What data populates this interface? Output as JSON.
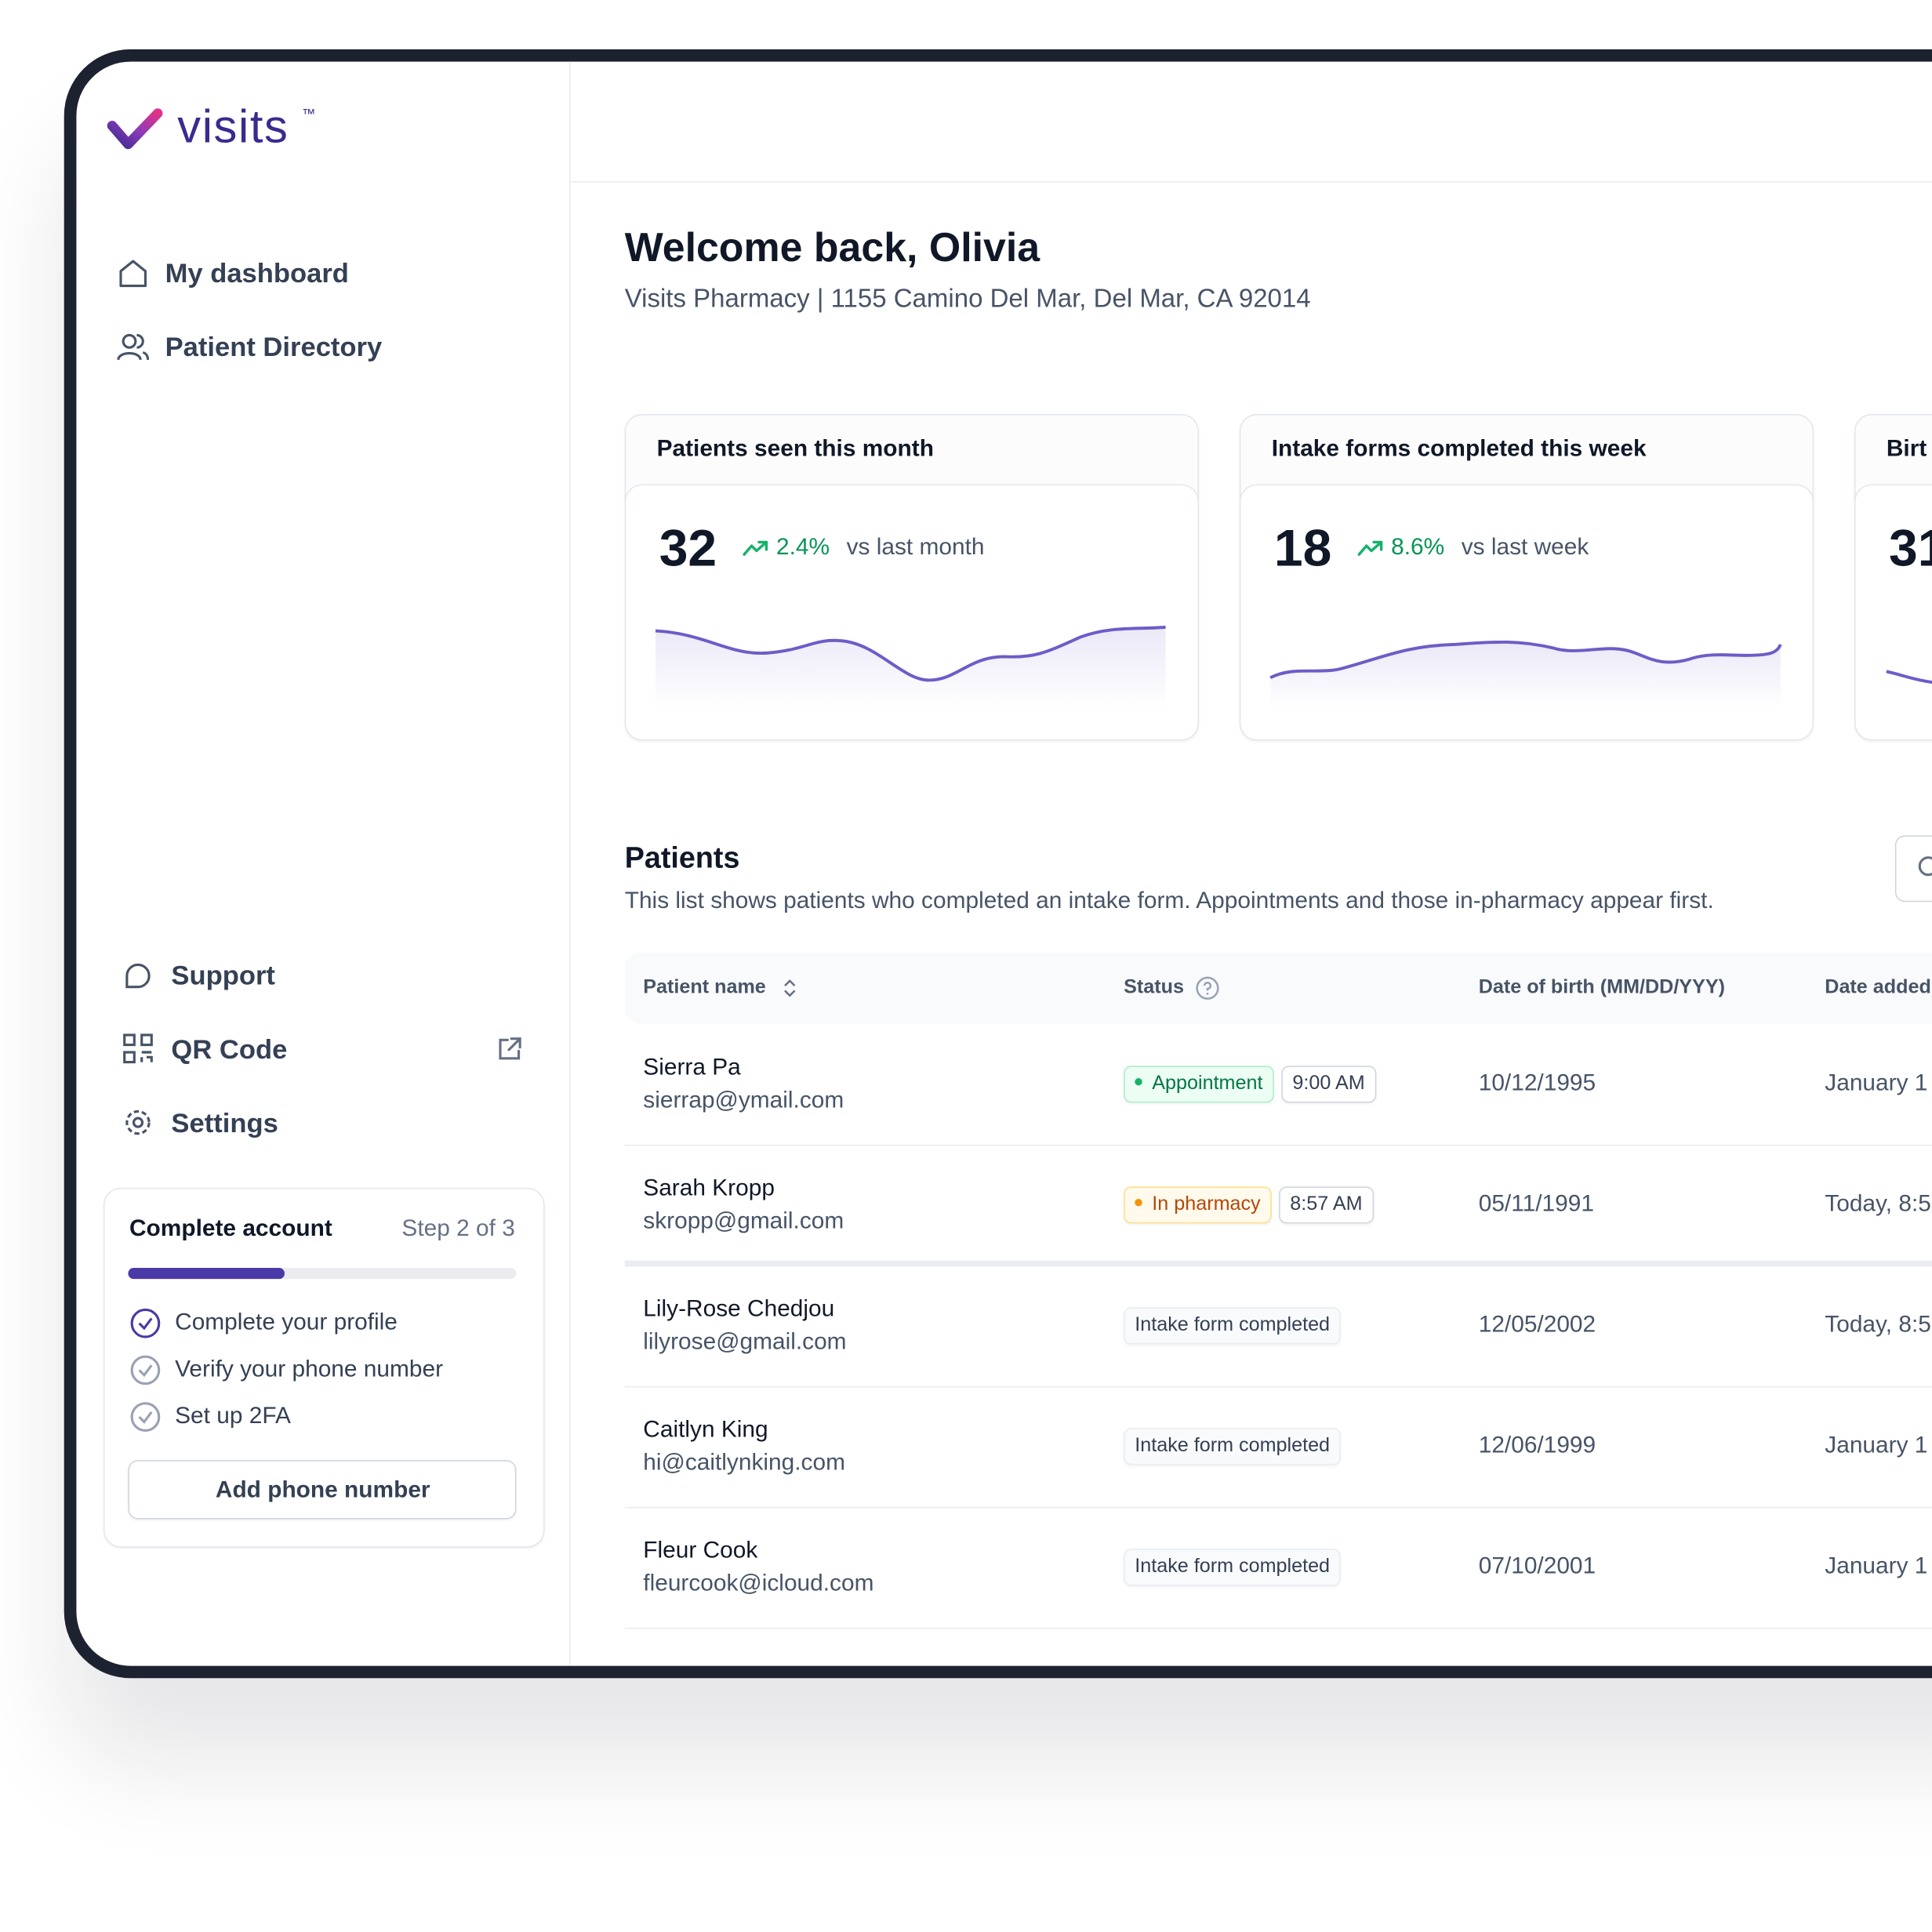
{
  "sidebar": {
    "logo": "visits",
    "trademark": "™",
    "nav": [
      "My dashboard",
      "Patient Directory"
    ],
    "footer_nav": [
      "Support",
      "QR Code",
      "Settings"
    ],
    "account_card": {
      "title": "Complete account",
      "step": "Step 2 of 3",
      "tasks": [
        "Complete your profile",
        "Verify your phone number",
        "Set up 2FA"
      ],
      "button": "Add phone number"
    }
  },
  "header": {
    "title": "Welcome back, Olivia",
    "subtitle": "Visits Pharmacy | 1155 Camino Del Mar, Del Mar, CA 92014"
  },
  "stats": [
    {
      "title": "Patients seen this month",
      "value": "32",
      "change": "2.4%",
      "comparison": "vs last month"
    },
    {
      "title": "Intake forms completed this week",
      "value": "18",
      "change": "8.6%",
      "comparison": "vs last week"
    },
    {
      "title": "Birt",
      "value": "31"
    }
  ],
  "patients": {
    "title": "Patients",
    "description": "This list shows patients who completed an intake form. Appointments and those in-pharmacy appear first.",
    "columns": [
      "Patient name",
      "Status",
      "Date of birth (MM/DD/YYY)",
      "Date added"
    ],
    "rows": [
      {
        "name": "Sierra Pa",
        "email": "sierrap@ymail.com",
        "status": "Appointment",
        "time": "9:00 AM",
        "dob": "10/12/1995",
        "added": "January 1"
      },
      {
        "name": "Sarah Kropp",
        "email": "skropp@gmail.com",
        "status": "In pharmacy",
        "time": "8:57 AM",
        "dob": "05/11/1991",
        "added": "Today, 8:5"
      },
      {
        "name": "Lily-Rose Chedjou",
        "email": "lilyrose@gmail.com",
        "status": "Intake form completed",
        "dob": "12/05/2002",
        "added": "Today, 8:5"
      },
      {
        "name": "Caitlyn King",
        "email": "hi@caitlynking.com",
        "status": "Intake form completed",
        "dob": "12/06/1999",
        "added": "January 1"
      },
      {
        "name": "Fleur Cook",
        "email": "fleurcook@icloud.com",
        "status": "Intake form completed",
        "dob": "07/10/2001",
        "added": "January 1"
      }
    ]
  }
}
